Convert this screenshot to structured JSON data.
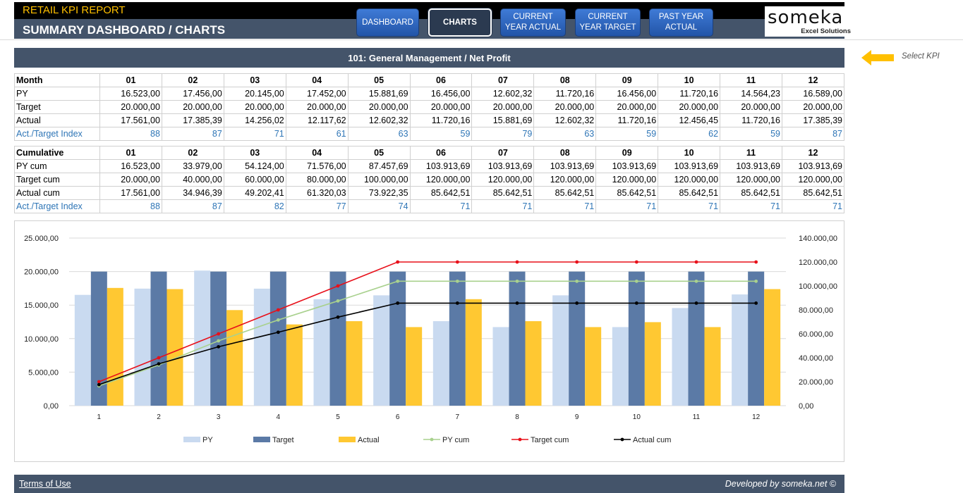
{
  "header": {
    "app_title": "RETAIL KPI REPORT",
    "page_title": "SUMMARY DASHBOARD / CHARTS",
    "nav": [
      {
        "label": "DASHBOARD",
        "active": false
      },
      {
        "label": "CHARTS",
        "active": true
      },
      {
        "label": "CURRENT\nYEAR ACTUAL",
        "active": false
      },
      {
        "label": "CURRENT\nYEAR TARGET",
        "active": false
      },
      {
        "label": "PAST YEAR\nACTUAL",
        "active": false
      }
    ],
    "logo": {
      "brand": "someka",
      "tagline": "Excel Solutions"
    }
  },
  "kpi": {
    "title": "101: General Management / Net Profit",
    "hint": "Select KPI",
    "arrow_color": "#ffc000"
  },
  "monthly": {
    "header_label": "Month",
    "months": [
      "01",
      "02",
      "03",
      "04",
      "05",
      "06",
      "07",
      "08",
      "09",
      "10",
      "11",
      "12"
    ],
    "rows": [
      {
        "label": "PY",
        "values": [
          "16.523,00",
          "17.456,00",
          "20.145,00",
          "17.452,00",
          "15.881,69",
          "16.456,00",
          "12.602,32",
          "11.720,16",
          "16.456,00",
          "11.720,16",
          "14.564,23",
          "16.589,00"
        ]
      },
      {
        "label": "Target",
        "values": [
          "20.000,00",
          "20.000,00",
          "20.000,00",
          "20.000,00",
          "20.000,00",
          "20.000,00",
          "20.000,00",
          "20.000,00",
          "20.000,00",
          "20.000,00",
          "20.000,00",
          "20.000,00"
        ]
      },
      {
        "label": "Actual",
        "values": [
          "17.561,00",
          "17.385,39",
          "14.256,02",
          "12.117,62",
          "12.602,32",
          "11.720,16",
          "15.881,69",
          "12.602,32",
          "11.720,16",
          "12.456,45",
          "11.720,16",
          "17.385,39"
        ]
      },
      {
        "label": "Act./Target Index",
        "values": [
          "88",
          "87",
          "71",
          "61",
          "63",
          "59",
          "79",
          "63",
          "59",
          "62",
          "59",
          "87"
        ],
        "index": true
      }
    ]
  },
  "cumulative": {
    "header_label": "Cumulative",
    "months": [
      "01",
      "02",
      "03",
      "04",
      "05",
      "06",
      "07",
      "08",
      "09",
      "10",
      "11",
      "12"
    ],
    "rows": [
      {
        "label": "PY cum",
        "values": [
          "16.523,00",
          "33.979,00",
          "54.124,00",
          "71.576,00",
          "87.457,69",
          "103.913,69",
          "103.913,69",
          "103.913,69",
          "103.913,69",
          "103.913,69",
          "103.913,69",
          "103.913,69"
        ]
      },
      {
        "label": "Target cum",
        "values": [
          "20.000,00",
          "40.000,00",
          "60.000,00",
          "80.000,00",
          "100.000,00",
          "120.000,00",
          "120.000,00",
          "120.000,00",
          "120.000,00",
          "120.000,00",
          "120.000,00",
          "120.000,00"
        ]
      },
      {
        "label": "Actual cum",
        "values": [
          "17.561,00",
          "34.946,39",
          "49.202,41",
          "61.320,03",
          "73.922,35",
          "85.642,51",
          "85.642,51",
          "85.642,51",
          "85.642,51",
          "85.642,51",
          "85.642,51",
          "85.642,51"
        ]
      },
      {
        "label": "Act./Target Index",
        "values": [
          "88",
          "87",
          "82",
          "77",
          "74",
          "71",
          "71",
          "71",
          "71",
          "71",
          "71",
          "71"
        ],
        "index": true
      }
    ]
  },
  "chart_data": {
    "type": "bar",
    "categories": [
      "1",
      "2",
      "3",
      "4",
      "5",
      "6",
      "7",
      "8",
      "9",
      "10",
      "11",
      "12"
    ],
    "y_left": {
      "min": 0,
      "max": 25000,
      "step": 5000,
      "tick_labels": [
        "0,00",
        "5.000,00",
        "10.000,00",
        "15.000,00",
        "20.000,00",
        "25.000,00"
      ]
    },
    "y_right": {
      "min": 0,
      "max": 140000,
      "step": 20000,
      "tick_labels": [
        "0,00",
        "20.000,00",
        "40.000,00",
        "60.000,00",
        "80.000,00",
        "100.000,00",
        "120.000,00",
        "140.000,00"
      ]
    },
    "grid": true,
    "legend_position": "bottom",
    "series": [
      {
        "name": "PY",
        "kind": "bar",
        "axis": "left",
        "color": "#c9daf0",
        "values": [
          16523,
          17456,
          20145,
          17452,
          15881.69,
          16456,
          12602.32,
          11720.16,
          16456,
          11720.16,
          14564.23,
          16589
        ]
      },
      {
        "name": "Target",
        "kind": "bar",
        "axis": "left",
        "color": "#5b7aa6",
        "values": [
          20000,
          20000,
          20000,
          20000,
          20000,
          20000,
          20000,
          20000,
          20000,
          20000,
          20000,
          20000
        ]
      },
      {
        "name": "Actual",
        "kind": "bar",
        "axis": "left",
        "color": "#ffc832",
        "values": [
          17561,
          17385.39,
          14256.02,
          12117.62,
          12602.32,
          11720.16,
          15881.69,
          12602.32,
          11720.16,
          12456.45,
          11720.16,
          17385.39
        ]
      },
      {
        "name": "PY cum",
        "kind": "line",
        "axis": "right",
        "color": "#a9d18e",
        "values": [
          16523,
          33979,
          54124,
          71576,
          87457.69,
          103913.69,
          103913.69,
          103913.69,
          103913.69,
          103913.69,
          103913.69,
          103913.69
        ]
      },
      {
        "name": "Target cum",
        "kind": "line",
        "axis": "right",
        "color": "#e8101a",
        "values": [
          20000,
          40000,
          60000,
          80000,
          100000,
          120000,
          120000,
          120000,
          120000,
          120000,
          120000,
          120000
        ]
      },
      {
        "name": "Actual cum",
        "kind": "line",
        "axis": "right",
        "color": "#000000",
        "values": [
          17561,
          34946.39,
          49202.41,
          61320.03,
          73922.35,
          85642.51,
          85642.51,
          85642.51,
          85642.51,
          85642.51,
          85642.51,
          85642.51
        ]
      }
    ]
  },
  "footer": {
    "terms": "Terms of Use",
    "developer": "Developed by someka.net ©"
  }
}
